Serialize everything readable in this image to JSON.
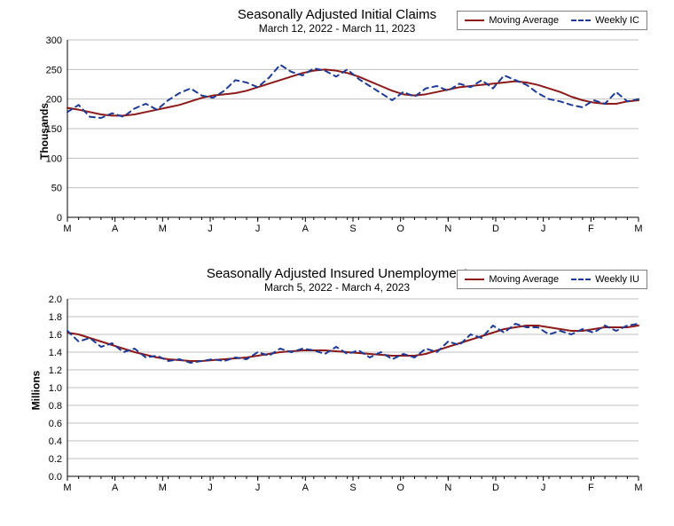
{
  "background_color": "#ffffff",
  "grid_color": "#bfbfbf",
  "axis_color": "#000000",
  "tick_fontsize": 11,
  "title_fontsize": 15,
  "subtitle_fontsize": 12,
  "x_months": [
    "M",
    "A",
    "M",
    "J",
    "J",
    "A",
    "S",
    "O",
    "N",
    "D",
    "J",
    "F",
    "M"
  ],
  "weeks_total": 52,
  "chart1": {
    "type": "line",
    "title": "Seasonally Adjusted Initial Claims",
    "subtitle": "March 12, 2022 - March 11, 2023",
    "ylabel": "Thousands",
    "ylim": [
      0,
      300
    ],
    "ytick_step": 50,
    "legend": [
      {
        "label": "Moving Average",
        "color": "#8b1a1a",
        "dash": false
      },
      {
        "label": "Weekly IC",
        "color": "#1f3a93",
        "dash": true
      }
    ],
    "series": {
      "moving_avg": {
        "color": "#8b1a1a",
        "dash": false,
        "values": [
          185,
          182,
          178,
          174,
          172,
          172,
          174,
          178,
          182,
          186,
          190,
          196,
          202,
          206,
          208,
          210,
          214,
          220,
          226,
          232,
          238,
          244,
          248,
          250,
          248,
          244,
          238,
          230,
          222,
          214,
          208,
          206,
          208,
          212,
          216,
          220,
          222,
          224,
          226,
          228,
          230,
          228,
          224,
          218,
          212,
          204,
          198,
          194,
          192,
          192,
          196,
          198
        ]
      },
      "weekly_ic": {
        "color": "#1f3a93",
        "dash": true,
        "values": [
          178,
          190,
          170,
          168,
          176,
          170,
          184,
          192,
          182,
          198,
          210,
          218,
          206,
          202,
          214,
          232,
          228,
          220,
          236,
          258,
          246,
          240,
          252,
          248,
          238,
          250,
          234,
          222,
          210,
          198,
          212,
          204,
          218,
          222,
          214,
          226,
          220,
          232,
          218,
          240,
          232,
          224,
          210,
          200,
          196,
          190,
          186,
          198,
          192,
          212,
          196,
          200
        ]
      }
    }
  },
  "chart2": {
    "type": "line",
    "title": "Seasonally Adjusted Insured Unemployment",
    "subtitle": "March 5, 2022 - March 4, 2023",
    "ylabel": "Millions",
    "ylim": [
      0.0,
      2.0
    ],
    "ytick_step": 0.2,
    "legend": [
      {
        "label": "Moving Average",
        "color": "#8b1a1a",
        "dash": false
      },
      {
        "label": "Weekly IU",
        "color": "#1f3a93",
        "dash": true
      }
    ],
    "series": {
      "moving_avg": {
        "color": "#8b1a1a",
        "dash": false,
        "values": [
          1.62,
          1.6,
          1.56,
          1.52,
          1.48,
          1.44,
          1.4,
          1.37,
          1.34,
          1.32,
          1.31,
          1.3,
          1.3,
          1.31,
          1.32,
          1.33,
          1.34,
          1.36,
          1.38,
          1.4,
          1.41,
          1.42,
          1.42,
          1.42,
          1.41,
          1.4,
          1.39,
          1.38,
          1.37,
          1.36,
          1.36,
          1.36,
          1.38,
          1.42,
          1.46,
          1.5,
          1.54,
          1.58,
          1.62,
          1.66,
          1.68,
          1.7,
          1.7,
          1.68,
          1.66,
          1.64,
          1.64,
          1.66,
          1.68,
          1.68,
          1.68,
          1.7
        ]
      },
      "weekly_iu": {
        "color": "#1f3a93",
        "dash": true,
        "values": [
          1.64,
          1.52,
          1.56,
          1.46,
          1.5,
          1.4,
          1.44,
          1.34,
          1.36,
          1.3,
          1.32,
          1.28,
          1.3,
          1.32,
          1.3,
          1.34,
          1.32,
          1.4,
          1.36,
          1.44,
          1.4,
          1.44,
          1.42,
          1.38,
          1.46,
          1.38,
          1.42,
          1.34,
          1.4,
          1.32,
          1.38,
          1.34,
          1.44,
          1.4,
          1.52,
          1.48,
          1.6,
          1.56,
          1.7,
          1.62,
          1.72,
          1.68,
          1.68,
          1.6,
          1.64,
          1.6,
          1.66,
          1.62,
          1.7,
          1.64,
          1.7,
          1.72
        ]
      }
    }
  }
}
